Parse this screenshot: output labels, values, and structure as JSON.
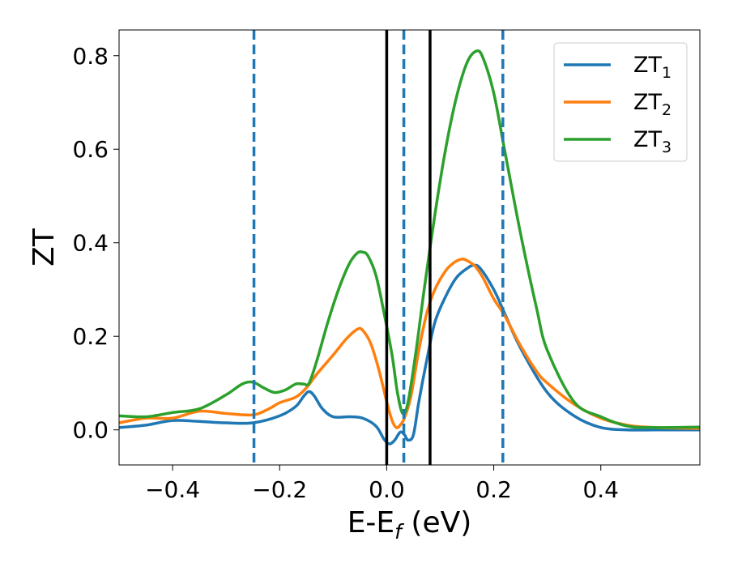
{
  "chart_data": {
    "type": "line",
    "xlabel": {
      "main": "E-E",
      "sub": "f",
      "unit": " (eV)"
    },
    "ylabel": "ZT",
    "xlim": [
      -0.5,
      0.585
    ],
    "ylim": [
      -0.075,
      0.855
    ],
    "xticks": [
      -0.4,
      -0.2,
      0.0,
      0.2,
      0.4
    ],
    "xtick_labels": [
      "−0.4",
      "−0.2",
      "0.0",
      "0.2",
      "0.4"
    ],
    "yticks": [
      0.0,
      0.2,
      0.4,
      0.6,
      0.8
    ],
    "ytick_labels": [
      "0.0",
      "0.2",
      "0.4",
      "0.6",
      "0.8"
    ],
    "grid": false,
    "legend_position": "top-right",
    "series": [
      {
        "name": "ZT",
        "name_sub": "1",
        "color": "#1f77b4",
        "points": [
          [
            -0.5,
            0.005
          ],
          [
            -0.45,
            0.01
          ],
          [
            -0.4,
            0.02
          ],
          [
            -0.35,
            0.018
          ],
          [
            -0.3,
            0.015
          ],
          [
            -0.25,
            0.015
          ],
          [
            -0.2,
            0.03
          ],
          [
            -0.17,
            0.05
          ],
          [
            -0.155,
            0.072
          ],
          [
            -0.145,
            0.082
          ],
          [
            -0.135,
            0.072
          ],
          [
            -0.12,
            0.045
          ],
          [
            -0.1,
            0.028
          ],
          [
            -0.07,
            0.028
          ],
          [
            -0.045,
            0.025
          ],
          [
            -0.02,
            0.008
          ],
          [
            -0.005,
            -0.02
          ],
          [
            0.005,
            -0.03
          ],
          [
            0.015,
            -0.022
          ],
          [
            0.025,
            -0.005
          ],
          [
            0.033,
            -0.01
          ],
          [
            0.04,
            -0.022
          ],
          [
            0.05,
            -0.01
          ],
          [
            0.06,
            0.06
          ],
          [
            0.075,
            0.15
          ],
          [
            0.09,
            0.23
          ],
          [
            0.11,
            0.285
          ],
          [
            0.13,
            0.325
          ],
          [
            0.15,
            0.345
          ],
          [
            0.162,
            0.352
          ],
          [
            0.175,
            0.345
          ],
          [
            0.2,
            0.3
          ],
          [
            0.22,
            0.25
          ],
          [
            0.25,
            0.175
          ],
          [
            0.3,
            0.08
          ],
          [
            0.35,
            0.03
          ],
          [
            0.4,
            0.005
          ],
          [
            0.45,
            0.0
          ],
          [
            0.5,
            0.0
          ],
          [
            0.585,
            0.0
          ]
        ]
      },
      {
        "name": "ZT",
        "name_sub": "2",
        "color": "#ff7f0e",
        "points": [
          [
            -0.5,
            0.015
          ],
          [
            -0.45,
            0.025
          ],
          [
            -0.4,
            0.025
          ],
          [
            -0.35,
            0.04
          ],
          [
            -0.3,
            0.035
          ],
          [
            -0.25,
            0.032
          ],
          [
            -0.22,
            0.045
          ],
          [
            -0.2,
            0.058
          ],
          [
            -0.17,
            0.07
          ],
          [
            -0.15,
            0.09
          ],
          [
            -0.13,
            0.12
          ],
          [
            -0.1,
            0.16
          ],
          [
            -0.075,
            0.195
          ],
          [
            -0.055,
            0.215
          ],
          [
            -0.045,
            0.213
          ],
          [
            -0.03,
            0.185
          ],
          [
            -0.015,
            0.13
          ],
          [
            0.0,
            0.06
          ],
          [
            0.01,
            0.02
          ],
          [
            0.018,
            0.005
          ],
          [
            0.025,
            0.01
          ],
          [
            0.033,
            0.025
          ],
          [
            0.045,
            0.07
          ],
          [
            0.06,
            0.17
          ],
          [
            0.075,
            0.25
          ],
          [
            0.09,
            0.3
          ],
          [
            0.11,
            0.34
          ],
          [
            0.125,
            0.357
          ],
          [
            0.14,
            0.365
          ],
          [
            0.15,
            0.362
          ],
          [
            0.165,
            0.35
          ],
          [
            0.18,
            0.325
          ],
          [
            0.2,
            0.28
          ],
          [
            0.22,
            0.245
          ],
          [
            0.25,
            0.18
          ],
          [
            0.28,
            0.125
          ],
          [
            0.3,
            0.1
          ],
          [
            0.35,
            0.055
          ],
          [
            0.4,
            0.025
          ],
          [
            0.45,
            0.01
          ],
          [
            0.5,
            0.005
          ],
          [
            0.585,
            0.003
          ]
        ]
      },
      {
        "name": "ZT",
        "name_sub": "3",
        "color": "#2ca02c",
        "points": [
          [
            -0.5,
            0.03
          ],
          [
            -0.45,
            0.028
          ],
          [
            -0.4,
            0.037
          ],
          [
            -0.35,
            0.045
          ],
          [
            -0.3,
            0.075
          ],
          [
            -0.27,
            0.098
          ],
          [
            -0.25,
            0.102
          ],
          [
            -0.23,
            0.09
          ],
          [
            -0.21,
            0.08
          ],
          [
            -0.19,
            0.085
          ],
          [
            -0.17,
            0.098
          ],
          [
            -0.155,
            0.098
          ],
          [
            -0.145,
            0.1
          ],
          [
            -0.13,
            0.15
          ],
          [
            -0.11,
            0.23
          ],
          [
            -0.09,
            0.3
          ],
          [
            -0.07,
            0.355
          ],
          [
            -0.055,
            0.378
          ],
          [
            -0.045,
            0.38
          ],
          [
            -0.035,
            0.372
          ],
          [
            -0.02,
            0.33
          ],
          [
            -0.005,
            0.25
          ],
          [
            0.01,
            0.16
          ],
          [
            0.02,
            0.08
          ],
          [
            0.03,
            0.035
          ],
          [
            0.04,
            0.06
          ],
          [
            0.055,
            0.17
          ],
          [
            0.07,
            0.3
          ],
          [
            0.09,
            0.46
          ],
          [
            0.11,
            0.6
          ],
          [
            0.13,
            0.71
          ],
          [
            0.15,
            0.785
          ],
          [
            0.168,
            0.81
          ],
          [
            0.18,
            0.795
          ],
          [
            0.2,
            0.72
          ],
          [
            0.22,
            0.6
          ],
          [
            0.25,
            0.42
          ],
          [
            0.28,
            0.26
          ],
          [
            0.3,
            0.17
          ],
          [
            0.35,
            0.06
          ],
          [
            0.4,
            0.028
          ],
          [
            0.45,
            0.008
          ],
          [
            0.5,
            0.005
          ],
          [
            0.585,
            0.006
          ]
        ]
      }
    ],
    "vertical_lines": [
      {
        "x": -0.248,
        "style": "dashed",
        "color": "#1f77b4"
      },
      {
        "x": 0.032,
        "style": "dashed",
        "color": "#1f77b4"
      },
      {
        "x": 0.217,
        "style": "dashed",
        "color": "#1f77b4"
      },
      {
        "x": 0.0,
        "style": "solid",
        "color": "#000000"
      },
      {
        "x": 0.081,
        "style": "solid",
        "color": "#000000"
      }
    ]
  }
}
